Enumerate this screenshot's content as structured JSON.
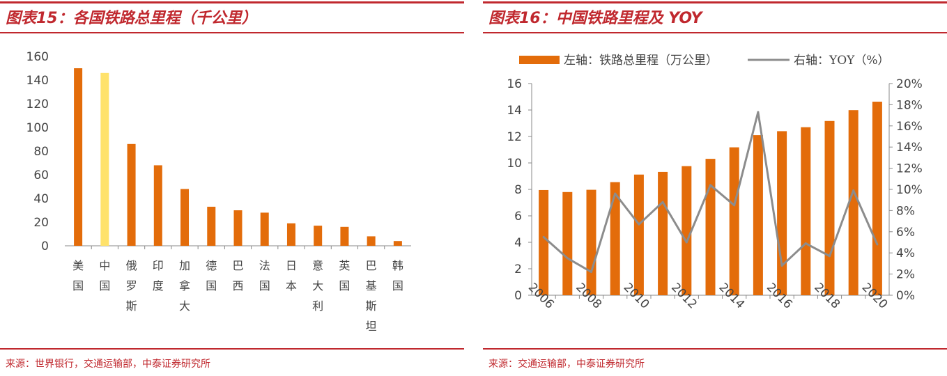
{
  "left": {
    "title": "图表15：各国铁路总里程（千公里）",
    "source": "来源：世界银行，交通运输部，中泰证券研究所"
  },
  "right": {
    "title": "图表16：中国铁路里程及 YOY",
    "source": "来源：交通运输部，中泰证券研究所"
  },
  "colors": {
    "bar": "#e36c0a",
    "highlight": "#ffe26b",
    "line": "#8c8c8c",
    "accent": "#c0282e"
  },
  "chart_data": [
    {
      "type": "bar",
      "title": "图表15：各国铁路总里程（千公里）",
      "categories": [
        "美国",
        "中国",
        "俄罗斯",
        "印度",
        "加拿大",
        "德国",
        "巴西",
        "法国",
        "日本",
        "意大利",
        "英国",
        "巴基斯坦",
        "韩国"
      ],
      "values": [
        150,
        146,
        86,
        68,
        48,
        33,
        30,
        28,
        19,
        17,
        16,
        8,
        4
      ],
      "highlight_index": 1,
      "yticks": [
        "0",
        "20",
        "40",
        "60",
        "80",
        "100",
        "120",
        "140",
        "160"
      ],
      "ylim": [
        0,
        160
      ],
      "grid": false
    },
    {
      "type": "bar+line",
      "title": "图表16：中国铁路里程及 YOY",
      "x": [
        "2006",
        "2007",
        "2008",
        "2009",
        "2010",
        "2011",
        "2012",
        "2013",
        "2014",
        "2015",
        "2016",
        "2017",
        "2018",
        "2019",
        "2020"
      ],
      "xticks": [
        "2006",
        "2008",
        "2010",
        "2012",
        "2014",
        "2016",
        "2018",
        "2020"
      ],
      "series": [
        {
          "name": "左轴：铁路总里程（万公里）",
          "axis": "left",
          "kind": "bar",
          "values": [
            7.95,
            7.8,
            7.97,
            8.55,
            9.12,
            9.32,
            9.76,
            10.31,
            11.18,
            12.1,
            12.4,
            12.7,
            13.17,
            13.99,
            14.63
          ]
        },
        {
          "name": "右轴：YOY（%）",
          "axis": "right",
          "kind": "line",
          "values": [
            5.5,
            3.5,
            2.2,
            9.6,
            6.7,
            8.8,
            5.0,
            10.4,
            8.5,
            17.3,
            2.8,
            4.9,
            3.7,
            9.9,
            4.8
          ]
        }
      ],
      "y_left": {
        "ticks": [
          "0",
          "2",
          "4",
          "6",
          "8",
          "10",
          "12",
          "14",
          "16"
        ],
        "lim": [
          0,
          16
        ]
      },
      "y_right": {
        "ticks": [
          "0%",
          "2%",
          "4%",
          "6%",
          "8%",
          "10%",
          "12%",
          "14%",
          "16%",
          "18%",
          "20%"
        ],
        "lim": [
          0,
          20
        ]
      },
      "legend": "top",
      "grid": false
    }
  ]
}
